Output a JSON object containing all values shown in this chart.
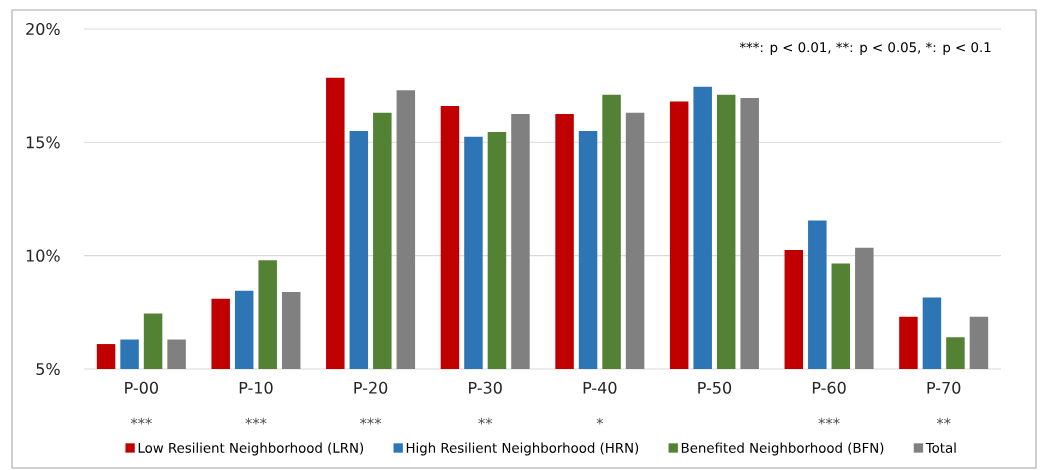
{
  "chart_data": {
    "type": "bar",
    "categories": [
      "P-00",
      "P-10",
      "P-20",
      "P-30",
      "P-40",
      "P-50",
      "P-60",
      "P-70"
    ],
    "series": [
      {
        "name": "Low Resilient Neighborhood (LRN)",
        "color": "#c00000",
        "values": [
          6.1,
          8.1,
          17.85,
          16.6,
          16.25,
          16.8,
          10.25,
          7.3
        ]
      },
      {
        "name": "High Resilient Neighborhood (HRN)",
        "color": "#2e75b6",
        "values": [
          6.3,
          8.45,
          15.5,
          15.25,
          15.5,
          17.45,
          11.55,
          8.15
        ]
      },
      {
        "name": "Benefited Neighborhood (BFN)",
        "color": "#548235",
        "values": [
          7.45,
          9.8,
          16.3,
          15.45,
          17.1,
          17.1,
          9.65,
          6.4
        ]
      },
      {
        "name": "Total",
        "color": "#808080",
        "values": [
          6.3,
          8.4,
          17.3,
          16.25,
          16.3,
          16.95,
          10.35,
          7.3
        ]
      }
    ],
    "ylim": [
      5,
      20
    ],
    "yticks": [
      {
        "value": 5,
        "label": "5%"
      },
      {
        "value": 10,
        "label": "10%"
      },
      {
        "value": 15,
        "label": "15%"
      },
      {
        "value": 20,
        "label": "20%"
      }
    ],
    "grid": "y",
    "legend": "bottom",
    "annotations": [
      "***: p < 0.01, **: p < 0.05, *: p < 0.1",
      "***",
      "***",
      "***",
      "**",
      "*",
      "***",
      "**"
    ]
  }
}
